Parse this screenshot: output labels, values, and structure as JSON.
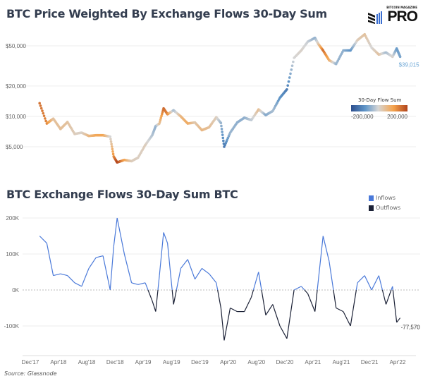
{
  "chart_data": [
    {
      "type": "scatter",
      "title": "BTC Price Weighted By Exchange Flows 30-Day Sum",
      "y_scale": "log",
      "ylim": [
        3000,
        70000
      ],
      "y_ticks": [
        "$5,000",
        "$10,000",
        "$20,000",
        "$50,000"
      ],
      "y_tick_values": [
        5000,
        10000,
        20000,
        50000
      ],
      "grid": true,
      "last_label": "$39,015",
      "color_legend": {
        "title": "30-Day Flow Sum",
        "min_label": "-200,000",
        "max_label": "200,000",
        "placement": "right"
      },
      "colors": {
        "-200000": "#2d4f8e",
        "-100000": "#5f95c8",
        "0": "#d6d6d6",
        "100000": "#f5a34c",
        "200000": "#b0431c"
      },
      "points": [
        {
          "date": "2018-01-10",
          "price": 13500,
          "flow": 150000
        },
        {
          "date": "2018-02-10",
          "price": 8500,
          "flow": 130000
        },
        {
          "date": "2018-03-10",
          "price": 9500,
          "flow": 40000
        },
        {
          "date": "2018-04-10",
          "price": 7500,
          "flow": 45000
        },
        {
          "date": "2018-05-10",
          "price": 8800,
          "flow": 40000
        },
        {
          "date": "2018-06-10",
          "price": 6700,
          "flow": 20000
        },
        {
          "date": "2018-07-10",
          "price": 6900,
          "flow": 10000
        },
        {
          "date": "2018-08-10",
          "price": 6400,
          "flow": 60000
        },
        {
          "date": "2018-09-10",
          "price": 6500,
          "flow": 90000
        },
        {
          "date": "2018-10-10",
          "price": 6500,
          "flow": 95000
        },
        {
          "date": "2018-11-10",
          "price": 6300,
          "flow": 0
        },
        {
          "date": "2018-11-25",
          "price": 4000,
          "flow": 120000
        },
        {
          "date": "2018-12-10",
          "price": 3500,
          "flow": 200000
        },
        {
          "date": "2019-01-10",
          "price": 3700,
          "flow": 100000
        },
        {
          "date": "2019-02-10",
          "price": 3600,
          "flow": 20000
        },
        {
          "date": "2019-03-10",
          "price": 3900,
          "flow": 15000
        },
        {
          "date": "2019-04-10",
          "price": 5200,
          "flow": 20000
        },
        {
          "date": "2019-05-10",
          "price": 6500,
          "flow": -30000
        },
        {
          "date": "2019-05-25",
          "price": 8000,
          "flow": -60000
        },
        {
          "date": "2019-06-10",
          "price": 8500,
          "flow": 40000
        },
        {
          "date": "2019-06-28",
          "price": 12000,
          "flow": 160000
        },
        {
          "date": "2019-07-15",
          "price": 10500,
          "flow": 130000
        },
        {
          "date": "2019-08-10",
          "price": 11500,
          "flow": -40000
        },
        {
          "date": "2019-09-10",
          "price": 10000,
          "flow": 60000
        },
        {
          "date": "2019-10-10",
          "price": 8500,
          "flow": 85000
        },
        {
          "date": "2019-11-10",
          "price": 8700,
          "flow": 30000
        },
        {
          "date": "2019-12-10",
          "price": 7300,
          "flow": 60000
        },
        {
          "date": "2020-01-10",
          "price": 7800,
          "flow": 45000
        },
        {
          "date": "2020-02-10",
          "price": 9800,
          "flow": 20000
        },
        {
          "date": "2020-03-01",
          "price": 8600,
          "flow": -50000
        },
        {
          "date": "2020-03-15",
          "price": 5000,
          "flow": -140000
        },
        {
          "date": "2020-04-10",
          "price": 6900,
          "flow": -50000
        },
        {
          "date": "2020-05-10",
          "price": 8700,
          "flow": -60000
        },
        {
          "date": "2020-06-10",
          "price": 9700,
          "flow": -60000
        },
        {
          "date": "2020-07-10",
          "price": 9200,
          "flow": -20000
        },
        {
          "date": "2020-08-10",
          "price": 11700,
          "flow": 50000
        },
        {
          "date": "2020-09-10",
          "price": 10300,
          "flow": -70000
        },
        {
          "date": "2020-10-10",
          "price": 11300,
          "flow": -40000
        },
        {
          "date": "2020-11-10",
          "price": 15300,
          "flow": -100000
        },
        {
          "date": "2020-12-10",
          "price": 18500,
          "flow": -135000
        },
        {
          "date": "2021-01-10",
          "price": 38000,
          "flow": 0
        },
        {
          "date": "2021-02-10",
          "price": 45000,
          "flow": 10000
        },
        {
          "date": "2021-03-10",
          "price": 55000,
          "flow": -10000
        },
        {
          "date": "2021-04-10",
          "price": 60000,
          "flow": -60000
        },
        {
          "date": "2021-04-25",
          "price": 52000,
          "flow": 30000
        },
        {
          "date": "2021-05-15",
          "price": 45000,
          "flow": 150000
        },
        {
          "date": "2021-06-10",
          "price": 36000,
          "flow": 80000
        },
        {
          "date": "2021-07-10",
          "price": 33000,
          "flow": -50000
        },
        {
          "date": "2021-08-10",
          "price": 45000,
          "flow": -60000
        },
        {
          "date": "2021-09-10",
          "price": 45000,
          "flow": -100000
        },
        {
          "date": "2021-10-10",
          "price": 57000,
          "flow": 20000
        },
        {
          "date": "2021-11-10",
          "price": 65000,
          "flow": 40000
        },
        {
          "date": "2021-12-10",
          "price": 48000,
          "flow": 0
        },
        {
          "date": "2022-01-10",
          "price": 41000,
          "flow": 40000
        },
        {
          "date": "2022-02-10",
          "price": 43000,
          "flow": -40000
        },
        {
          "date": "2022-03-10",
          "price": 39000,
          "flow": 10000
        },
        {
          "date": "2022-03-28",
          "price": 47000,
          "flow": -90000
        },
        {
          "date": "2022-04-12",
          "price": 39015,
          "flow": -77570
        }
      ]
    },
    {
      "type": "line",
      "title": "BTC Exchange Flows 30-Day Sum BTC",
      "ylim": [
        -160000,
        220000
      ],
      "y_ticks": [
        "-100K",
        "0K",
        "100K",
        "200K"
      ],
      "y_tick_values": [
        -100000,
        0,
        100000,
        200000
      ],
      "x_ticks": [
        "Dec'17",
        "Apr'18",
        "Aug'18",
        "Dec'18",
        "Apr'19",
        "Aug'19",
        "Dec'19",
        "Apr'20",
        "Aug'20",
        "Dec'20",
        "Apr'21",
        "Aug'21",
        "Dec'21",
        "Apr'22"
      ],
      "x_tick_dates": [
        "2017-12-01",
        "2018-04-01",
        "2018-08-01",
        "2018-12-01",
        "2019-04-01",
        "2019-08-01",
        "2019-12-01",
        "2020-04-01",
        "2020-08-01",
        "2020-12-01",
        "2021-04-01",
        "2021-08-01",
        "2021-12-01",
        "2022-04-01"
      ],
      "grid": true,
      "legend": {
        "placement": "top-right",
        "items": [
          {
            "name": "Inflows",
            "color": "#4a79d9"
          },
          {
            "name": "Outflows",
            "color": "#1b2136"
          }
        ]
      },
      "last_label": "-77,570"
    }
  ],
  "logo": {
    "small": "BITCOIN MAGAZINE",
    "big": "PRO"
  },
  "source": "Source: Glassnode"
}
